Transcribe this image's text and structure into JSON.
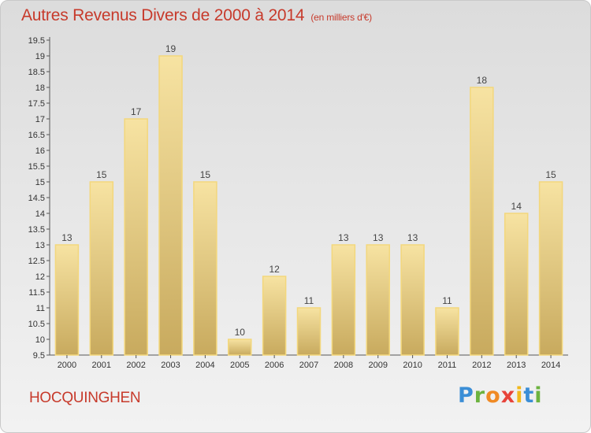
{
  "header": {
    "title": "Autres Revenus Divers de 2000 à 2014",
    "subtitle": "(en milliers d'€)"
  },
  "footer": {
    "town": "HOCQUINGHEN",
    "logo": [
      "P",
      "r",
      "o",
      "x",
      "i",
      "t",
      "i"
    ]
  },
  "colors": {
    "title": "#c73a2b",
    "bar_light": "#f7e3a2",
    "bar_dark": "#c8aa5e",
    "bar_border": "#f3d77c"
  },
  "chart_data": {
    "type": "bar",
    "title": "Autres Revenus Divers de 2000 à 2014",
    "subtitle": "(en milliers d'€)",
    "xlabel": "",
    "ylabel": "",
    "categories": [
      "2000",
      "2001",
      "2002",
      "2003",
      "2004",
      "2005",
      "2006",
      "2007",
      "2008",
      "2009",
      "2010",
      "2011",
      "2012",
      "2013",
      "2014"
    ],
    "values": [
      13,
      15,
      17,
      19,
      15,
      10,
      12,
      11,
      13,
      13,
      13,
      11,
      18,
      14,
      15
    ],
    "data_labels": [
      "13",
      "15",
      "17",
      "19",
      "15",
      "10",
      "12",
      "11",
      "13",
      "13",
      "13",
      "11",
      "18",
      "14",
      "15"
    ],
    "y_ticks": [
      "9.5",
      "10",
      "10.5",
      "11",
      "11.5",
      "12",
      "12.5",
      "13",
      "13.5",
      "14",
      "14.5",
      "15",
      "15.5",
      "16",
      "16.5",
      "17",
      "17.5",
      "18",
      "18.5",
      "19",
      "19.5"
    ],
    "y_tick_values": [
      9.5,
      10,
      10.5,
      11,
      11.5,
      12,
      12.5,
      13,
      13.5,
      14,
      14.5,
      15,
      15.5,
      16,
      16.5,
      17,
      17.5,
      18,
      18.5,
      19,
      19.5
    ],
    "ylim": [
      9.5,
      19.5
    ],
    "grid": false,
    "legend": "none"
  }
}
